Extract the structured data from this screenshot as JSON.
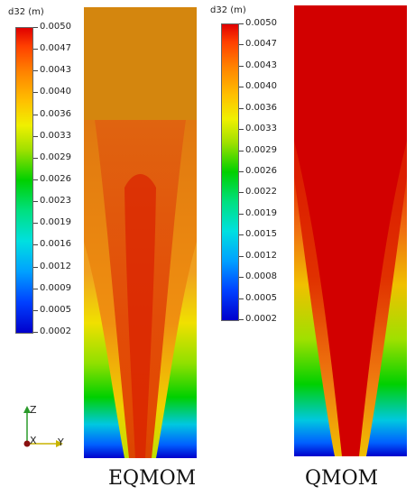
{
  "colorbars": [
    {
      "title": "d32 (m)",
      "ticks": [
        "0.0050",
        "0.0047",
        "0.0043",
        "0.0040",
        "0.0036",
        "0.0033",
        "0.0029",
        "0.0026",
        "0.0023",
        "0.0019",
        "0.0016",
        "0.0012",
        "0.0009",
        "0.0005",
        "0.0002"
      ]
    },
    {
      "title": "d32 (m)",
      "ticks": [
        "0.0050",
        "0.0047",
        "0.0043",
        "0.0040",
        "0.0036",
        "0.0033",
        "0.0029",
        "0.0026",
        "0.0022",
        "0.0019",
        "0.0015",
        "0.0012",
        "0.0008",
        "0.0005",
        "0.0002"
      ]
    }
  ],
  "panels": [
    {
      "caption": "EQMOM"
    },
    {
      "caption": "QMOM"
    }
  ],
  "axes_triad": {
    "z": "Z",
    "x": "X",
    "y": "Y"
  },
  "colors": {
    "rainbow": [
      "#0000cc",
      "#0040ff",
      "#00a0ff",
      "#00e0e0",
      "#00e080",
      "#00d000",
      "#a0e000",
      "#f0f000",
      "#ffc000",
      "#ff8000",
      "#ff4000",
      "#e00000"
    ],
    "eqmom_top": "#d4820a",
    "qmom_top": "#d20000"
  }
}
